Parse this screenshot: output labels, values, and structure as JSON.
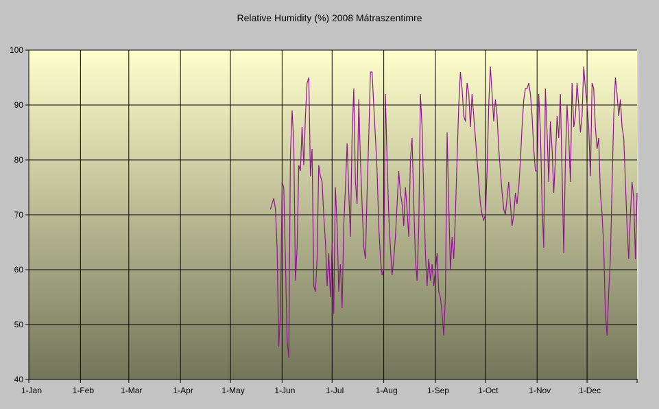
{
  "title": "Relative Humidity (%) 2008 Mátraszentimre",
  "colors": {
    "page_background": "#c3c3c3",
    "plot_gradient_top": "#ffffcc",
    "plot_gradient_bottom": "#73755a",
    "gridline": "#000000",
    "axis": "#000000",
    "series_line": "#8b148b",
    "plot_right_edge": "#d9d9d9",
    "text": "#000000"
  },
  "chart_data": {
    "type": "line",
    "title": "Relative Humidity (%) 2008 Mátraszentimre",
    "xlabel": "",
    "ylabel": "",
    "ylim": [
      40,
      100
    ],
    "y_ticks": [
      100,
      90,
      80,
      70,
      60,
      50,
      40
    ],
    "x_tick_labels": [
      "1-Jan",
      "1-Feb",
      "1-Mar",
      "1-Apr",
      "1-May",
      "1-Jun",
      "1-Jul",
      "1-Aug",
      "1-Sep",
      "1-Oct",
      "1-Nov",
      "1-Dec"
    ],
    "x_tick_days": [
      1,
      32,
      61,
      92,
      122,
      153,
      183,
      214,
      245,
      275,
      306,
      336
    ],
    "days_in_year": 366,
    "grid": true,
    "legend": "none",
    "series": [
      {
        "name": "Relative Humidity (%)",
        "start_date": "2008-05-25",
        "start_day_of_year": 146,
        "values": [
          71,
          72,
          73,
          71,
          64,
          46,
          52,
          76,
          75,
          62,
          47,
          44,
          81,
          89,
          83,
          58,
          64,
          79,
          78,
          86,
          79,
          88,
          94,
          95,
          77,
          82,
          57,
          56,
          62,
          79,
          77,
          76,
          70,
          65,
          57,
          63,
          55,
          65,
          52,
          75,
          68,
          56,
          61,
          53,
          68,
          75,
          83,
          74,
          66,
          84,
          93,
          76,
          72,
          91,
          80,
          72,
          64,
          62,
          74,
          84,
          96,
          96,
          90,
          84,
          78,
          68,
          62,
          59,
          60,
          92,
          80,
          70,
          64,
          59,
          62,
          66,
          72,
          78,
          74,
          72,
          68,
          75,
          71,
          66,
          80,
          84,
          72,
          62,
          58,
          68,
          92,
          86,
          74,
          63,
          57,
          62,
          58,
          61,
          57,
          60,
          63,
          56,
          55,
          52,
          48,
          55,
          85,
          72,
          60,
          66,
          62,
          70,
          80,
          90,
          96,
          93,
          88,
          87,
          94,
          92,
          86,
          92,
          88,
          84,
          80,
          76,
          72,
          70,
          69,
          70,
          78,
          90,
          97,
          92,
          87,
          91,
          88,
          82,
          78,
          74,
          71,
          70,
          73,
          76,
          72,
          68,
          70,
          74,
          72,
          75,
          80,
          86,
          91,
          93,
          93,
          94,
          92,
          88,
          82,
          78,
          78,
          92,
          85,
          72,
          64,
          93,
          85,
          76,
          87,
          82,
          74,
          80,
          88,
          84,
          92,
          78,
          63,
          80,
          90,
          84,
          76,
          94,
          86,
          88,
          94,
          90,
          85,
          88,
          97,
          93,
          90,
          86,
          77,
          94,
          93,
          86,
          82,
          84,
          74,
          70,
          64,
          52,
          48,
          56,
          62,
          75,
          88,
          95,
          92,
          88,
          91,
          86,
          84,
          76,
          68,
          62,
          70,
          76,
          73,
          62,
          74
        ]
      }
    ]
  }
}
